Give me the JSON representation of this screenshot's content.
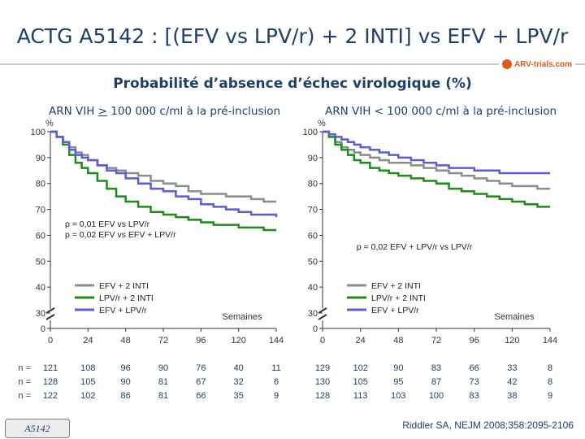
{
  "slide": {
    "title": "ACTG A5142 : [(EFV vs LPV/r) + 2 INTI] vs EFV + LPV/r",
    "subtitle": "Probabilité d’absence d’échec virologique (%)",
    "logo": "ARV-trials.com",
    "reference": "Riddler SA, NEJM 2008;358:2095-2106",
    "badge": "A5142"
  },
  "panels": [
    {
      "title_before": "ARN VIH ",
      "title_symbol": ">",
      "title_after": " 100 000 c/ml à la pré-inclusion"
    },
    {
      "title_full": "ARN VIH < 100 000 c/ml à la pré-inclusion"
    }
  ],
  "chart_data": [
    {
      "type": "line",
      "step": true,
      "ylabel": "%",
      "xlabel": "Semaines",
      "ylim": [
        0,
        100
      ],
      "yticks": [
        0,
        30,
        40,
        50,
        60,
        70,
        80,
        90,
        100
      ],
      "axis_break": true,
      "xticks": [
        0,
        24,
        48,
        72,
        96,
        120,
        144
      ],
      "annotations": [
        "p = 0,01 EFV vs LPV/r",
        "p = 0,02 EFV vs EFV + LPV/r"
      ],
      "legend_position": "lower-left",
      "series": [
        {
          "name": "EFV + 2 INTI",
          "color": "#8c8c8c",
          "x": [
            0,
            4,
            8,
            12,
            16,
            20,
            24,
            30,
            36,
            42,
            48,
            56,
            64,
            72,
            80,
            88,
            96,
            104,
            112,
            120,
            128,
            136,
            144
          ],
          "y": [
            100,
            98,
            96,
            94,
            92,
            91,
            89,
            87,
            86,
            85,
            84,
            83,
            81,
            80,
            79,
            77,
            76,
            76,
            75,
            75,
            74,
            73,
            73
          ]
        },
        {
          "name": "LPV/r + 2 INTI",
          "color": "#1a8c1a",
          "x": [
            0,
            4,
            8,
            12,
            16,
            20,
            24,
            30,
            36,
            42,
            48,
            56,
            64,
            72,
            80,
            88,
            96,
            104,
            112,
            120,
            128,
            136,
            144
          ],
          "y": [
            100,
            98,
            95,
            91,
            88,
            86,
            84,
            81,
            78,
            75,
            73,
            71,
            69,
            68,
            67,
            66,
            65,
            64,
            64,
            63,
            63,
            62,
            62
          ]
        },
        {
          "name": "EFV + LPV/r",
          "color": "#5b5bd6",
          "x": [
            0,
            4,
            8,
            12,
            16,
            20,
            24,
            30,
            36,
            42,
            48,
            56,
            64,
            72,
            80,
            88,
            96,
            104,
            112,
            120,
            128,
            136,
            144
          ],
          "y": [
            100,
            98,
            96,
            93,
            91,
            90,
            89,
            87,
            85,
            84,
            82,
            80,
            78,
            77,
            75,
            74,
            72,
            71,
            70,
            69,
            68,
            68,
            67
          ]
        }
      ],
      "at_risk": {
        "label": "n =",
        "rows": [
          [
            "121",
            "108",
            "96",
            "90",
            "76",
            "40",
            "11"
          ],
          [
            "128",
            "105",
            "90",
            "81",
            "67",
            "32",
            "6"
          ],
          [
            "122",
            "102",
            "86",
            "81",
            "66",
            "35",
            "9"
          ]
        ]
      }
    },
    {
      "type": "line",
      "step": true,
      "ylabel": "%",
      "xlabel": "Semaines",
      "ylim": [
        0,
        100
      ],
      "yticks": [
        0,
        30,
        40,
        50,
        60,
        70,
        80,
        90,
        100
      ],
      "axis_break": true,
      "xticks": [
        0,
        24,
        48,
        72,
        96,
        120,
        144
      ],
      "annotations": [
        "p = 0,02 EFV + LPV/r vs LPV/r"
      ],
      "legend_position": "lower-left",
      "series": [
        {
          "name": "EFV + 2 INTI",
          "color": "#8c8c8c",
          "x": [
            0,
            4,
            8,
            12,
            16,
            20,
            24,
            30,
            36,
            42,
            48,
            56,
            64,
            72,
            80,
            88,
            96,
            104,
            112,
            120,
            128,
            136,
            144
          ],
          "y": [
            100,
            98,
            96,
            94,
            93,
            92,
            91,
            90,
            89,
            88,
            88,
            87,
            86,
            85,
            84,
            83,
            82,
            81,
            80,
            79,
            79,
            78,
            78
          ]
        },
        {
          "name": "LPV/r + 2 INTI",
          "color": "#1a8c1a",
          "x": [
            0,
            4,
            8,
            12,
            16,
            20,
            24,
            30,
            36,
            42,
            48,
            56,
            64,
            72,
            80,
            88,
            96,
            104,
            112,
            120,
            128,
            136,
            144
          ],
          "y": [
            100,
            98,
            95,
            93,
            91,
            89,
            88,
            86,
            85,
            84,
            83,
            82,
            81,
            80,
            78,
            77,
            76,
            75,
            74,
            73,
            72,
            71,
            71
          ]
        },
        {
          "name": "EFV + LPV/r",
          "color": "#5b5bd6",
          "x": [
            0,
            4,
            8,
            12,
            16,
            20,
            24,
            30,
            36,
            42,
            48,
            56,
            64,
            72,
            80,
            88,
            96,
            104,
            112,
            120,
            128,
            136,
            144
          ],
          "y": [
            100,
            99,
            98,
            97,
            96,
            95,
            94,
            93,
            92,
            91,
            90,
            89,
            88,
            87,
            86,
            86,
            85,
            85,
            84,
            84,
            84,
            84,
            84
          ]
        }
      ],
      "at_risk": {
        "label": "",
        "rows": [
          [
            "129",
            "102",
            "90",
            "83",
            "66",
            "33",
            "8"
          ],
          [
            "130",
            "105",
            "95",
            "87",
            "73",
            "42",
            "8"
          ],
          [
            "128",
            "113",
            "103",
            "100",
            "83",
            "38",
            "9"
          ]
        ]
      }
    }
  ]
}
